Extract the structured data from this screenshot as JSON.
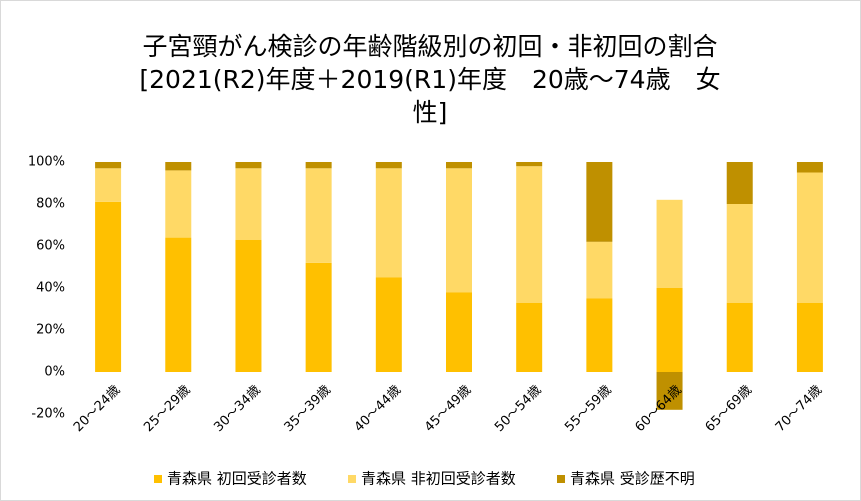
{
  "chart_data": {
    "type": "stacked_bar",
    "title_lines": [
      "子宮頸がん検診の年齢階級別の初回・非初回の割合",
      "[2021(R2)年度＋2019(R1)年度　20歳～74歳　女",
      "性]"
    ],
    "categories": [
      "20～24歳",
      "25～29歳",
      "30～34歳",
      "35～39歳",
      "40～44歳",
      "45～49歳",
      "50～54歳",
      "55～59歳",
      "60～64歳",
      "65～69歳",
      "70～74歳"
    ],
    "series": [
      {
        "name": "青森県 初回受診者数",
        "color": "#ffc000",
        "values": [
          81,
          64,
          63,
          52,
          45,
          38,
          33,
          35,
          40,
          33,
          33
        ]
      },
      {
        "name": "青森県 非初回受診者数",
        "color": "#ffd966",
        "values": [
          16,
          32,
          34,
          45,
          52,
          59,
          65,
          27,
          42,
          47,
          62
        ]
      },
      {
        "name": "青森県 受診歴不明",
        "color": "#bf9000",
        "values": [
          3,
          4,
          3,
          3,
          3,
          3,
          2,
          38,
          -18,
          20,
          5
        ]
      }
    ],
    "ylim": [
      -20,
      100
    ],
    "yticks": [
      {
        "value": -20,
        "label": "-20%"
      },
      {
        "value": 0,
        "label": "0%"
      },
      {
        "value": 20,
        "label": "20%"
      },
      {
        "value": 40,
        "label": "40%"
      },
      {
        "value": 60,
        "label": "60%"
      },
      {
        "value": 80,
        "label": "80%"
      },
      {
        "value": 100,
        "label": "100%"
      }
    ],
    "grid": false,
    "legend": "bottom"
  }
}
